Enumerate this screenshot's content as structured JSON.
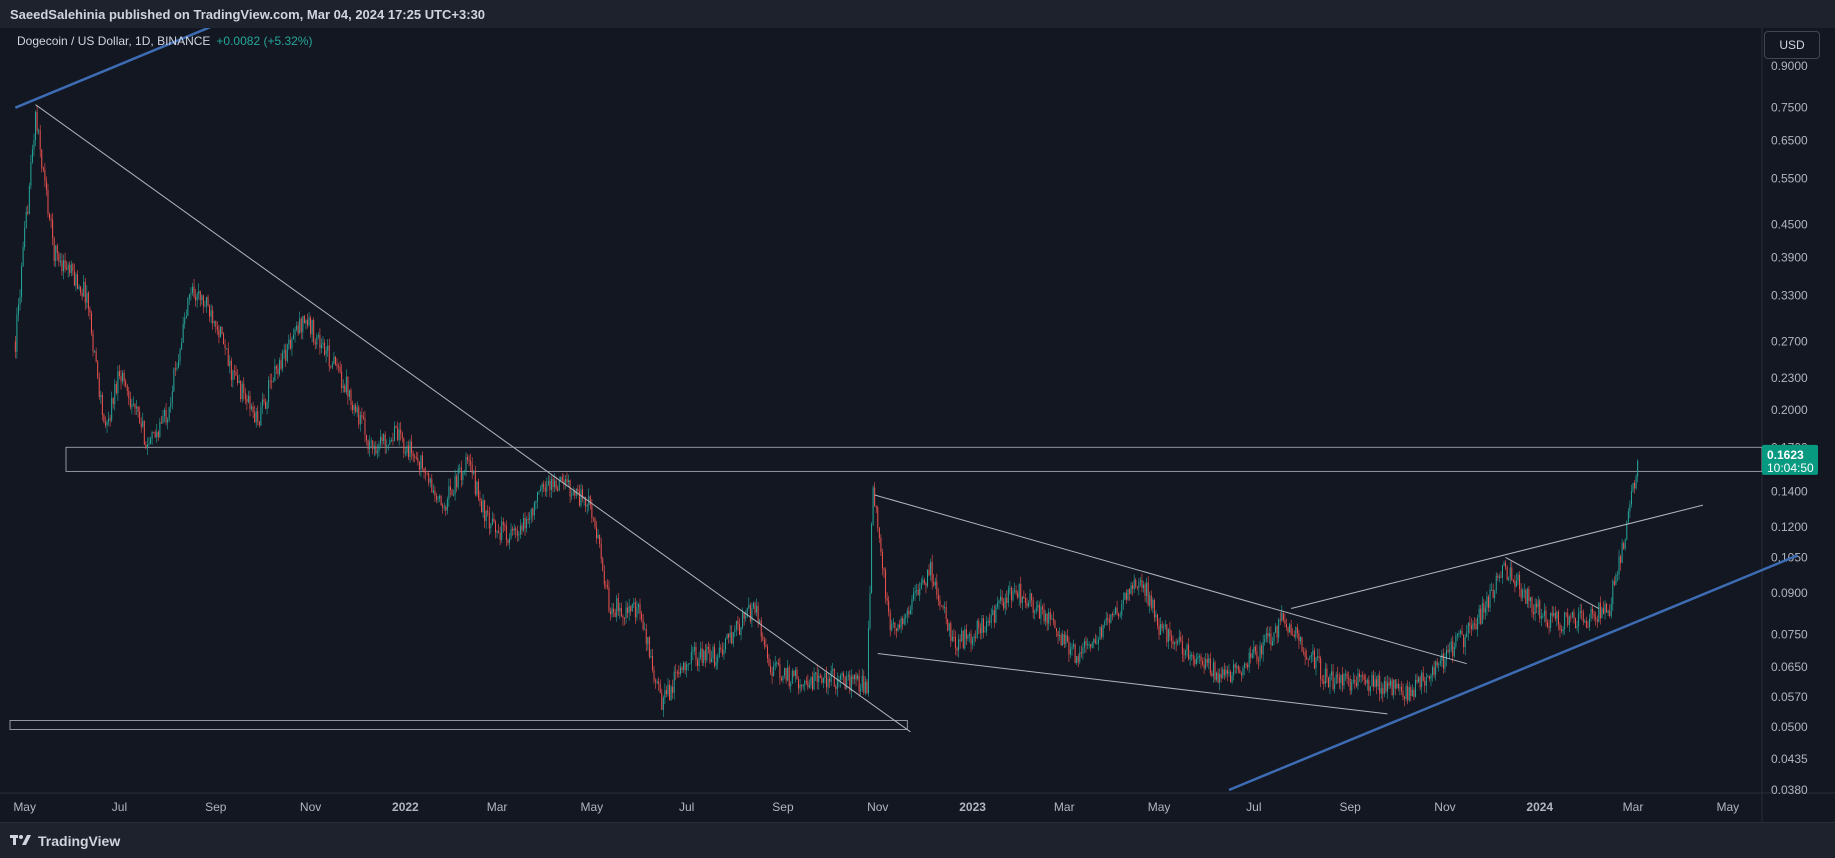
{
  "header": {
    "published_line": "SaeedSalehinia published on TradingView.com, Mar 04, 2024 17:25 UTC+3:30"
  },
  "legend": {
    "symbol": "Dogecoin / US Dollar, 1D, BINANCE",
    "change": "+0.0082 (+5.32%)"
  },
  "currency_button": "USD",
  "footer": {
    "brand": "TradingView"
  },
  "price_tag": {
    "price": "0.1623",
    "countdown": "10:04:50",
    "color": "#089981"
  },
  "colors": {
    "background": "#131722",
    "up": "#26a69a",
    "down": "#ef5350",
    "trendline": "#b2b5be",
    "channel": "#2962ff"
  },
  "chart_data": {
    "type": "candlestick",
    "scale": "log",
    "price_axis_labels": [
      "0.9000",
      "0.7500",
      "0.6500",
      "0.5500",
      "0.4500",
      "0.3900",
      "0.3300",
      "0.2700",
      "0.2300",
      "0.2000",
      "0.1700",
      "0.1400",
      "0.1200",
      "0.1050",
      "0.0900",
      "0.0750",
      "0.0650",
      "0.0570",
      "0.0500",
      "0.0435",
      "0.0380"
    ],
    "time_axis_labels": [
      {
        "label": "May",
        "date": "2021-05-01"
      },
      {
        "label": "Jul",
        "date": "2021-07-01"
      },
      {
        "label": "Sep",
        "date": "2021-09-01"
      },
      {
        "label": "Nov",
        "date": "2021-11-01"
      },
      {
        "label": "2022",
        "date": "2022-01-01",
        "bold": true
      },
      {
        "label": "Mar",
        "date": "2022-03-01"
      },
      {
        "label": "May",
        "date": "2022-05-01"
      },
      {
        "label": "Jul",
        "date": "2022-07-01"
      },
      {
        "label": "Sep",
        "date": "2022-09-01"
      },
      {
        "label": "Nov",
        "date": "2022-11-01"
      },
      {
        "label": "2023",
        "date": "2023-01-01",
        "bold": true
      },
      {
        "label": "Mar",
        "date": "2023-03-01"
      },
      {
        "label": "May",
        "date": "2023-05-01"
      },
      {
        "label": "Jul",
        "date": "2023-07-01"
      },
      {
        "label": "Sep",
        "date": "2023-09-01"
      },
      {
        "label": "Nov",
        "date": "2023-11-01"
      },
      {
        "label": "2024",
        "date": "2024-01-01",
        "bold": true
      },
      {
        "label": "Mar",
        "date": "2024-03-01"
      },
      {
        "label": "May",
        "date": "2024-05-01"
      }
    ],
    "price_path": [
      [
        "2021-04-25",
        0.27
      ],
      [
        "2021-05-08",
        0.72
      ],
      [
        "2021-05-20",
        0.4
      ],
      [
        "2021-06-01",
        0.36
      ],
      [
        "2021-06-10",
        0.33
      ],
      [
        "2021-06-22",
        0.18
      ],
      [
        "2021-07-01",
        0.24
      ],
      [
        "2021-07-20",
        0.17
      ],
      [
        "2021-08-01",
        0.2
      ],
      [
        "2021-08-16",
        0.34
      ],
      [
        "2021-09-01",
        0.3
      ],
      [
        "2021-09-10",
        0.24
      ],
      [
        "2021-09-28",
        0.19
      ],
      [
        "2021-10-10",
        0.24
      ],
      [
        "2021-10-28",
        0.3
      ],
      [
        "2021-11-10",
        0.26
      ],
      [
        "2021-11-25",
        0.22
      ],
      [
        "2021-12-10",
        0.17
      ],
      [
        "2021-12-25",
        0.18
      ],
      [
        "2022-01-10",
        0.16
      ],
      [
        "2022-01-24",
        0.13
      ],
      [
        "2022-02-10",
        0.16
      ],
      [
        "2022-02-24",
        0.12
      ],
      [
        "2022-03-15",
        0.115
      ],
      [
        "2022-04-01",
        0.145
      ],
      [
        "2022-04-15",
        0.145
      ],
      [
        "2022-05-01",
        0.13
      ],
      [
        "2022-05-12",
        0.085
      ],
      [
        "2022-06-01",
        0.082
      ],
      [
        "2022-06-15",
        0.055
      ],
      [
        "2022-07-01",
        0.068
      ],
      [
        "2022-07-20",
        0.068
      ],
      [
        "2022-08-14",
        0.085
      ],
      [
        "2022-08-25",
        0.064
      ],
      [
        "2022-09-15",
        0.061
      ],
      [
        "2022-10-01",
        0.062
      ],
      [
        "2022-10-25",
        0.06
      ],
      [
        "2022-10-29",
        0.145
      ],
      [
        "2022-11-09",
        0.075
      ],
      [
        "2022-11-22",
        0.085
      ],
      [
        "2022-12-05",
        0.1
      ],
      [
        "2022-12-20",
        0.072
      ],
      [
        "2023-01-10",
        0.078
      ],
      [
        "2023-01-28",
        0.092
      ],
      [
        "2023-02-10",
        0.085
      ],
      [
        "2023-03-10",
        0.068
      ],
      [
        "2023-03-25",
        0.075
      ],
      [
        "2023-04-19",
        0.097
      ],
      [
        "2023-05-01",
        0.078
      ],
      [
        "2023-06-10",
        0.062
      ],
      [
        "2023-07-01",
        0.068
      ],
      [
        "2023-07-20",
        0.08
      ],
      [
        "2023-08-17",
        0.062
      ],
      [
        "2023-09-10",
        0.061
      ],
      [
        "2023-10-10",
        0.058
      ],
      [
        "2023-11-01",
        0.068
      ],
      [
        "2023-11-20",
        0.078
      ],
      [
        "2023-12-10",
        0.1
      ],
      [
        "2024-01-05",
        0.08
      ],
      [
        "2024-01-25",
        0.079
      ],
      [
        "2024-02-15",
        0.085
      ],
      [
        "2024-02-28",
        0.13
      ],
      [
        "2024-03-04",
        0.1623
      ]
    ],
    "levels": {
      "resistance_zone": [
        0.153,
        0.17
      ],
      "support_zone": [
        0.0495,
        0.0515
      ]
    },
    "drawings": [
      {
        "name": "major-downtrend",
        "from": [
          "2021-05-08",
          0.76
        ],
        "to": [
          "2022-11-22",
          0.049
        ]
      },
      {
        "name": "wedge-top",
        "from": [
          "2022-10-30",
          0.138
        ],
        "to": [
          "2023-11-15",
          0.066
        ]
      },
      {
        "name": "wedge-bottom",
        "from": [
          "2022-11-01",
          0.069
        ],
        "to": [
          "2023-09-25",
          0.053
        ]
      },
      {
        "name": "breakout-line",
        "from": [
          "2023-07-25",
          0.084
        ],
        "to": [
          "2024-04-15",
          0.132
        ]
      },
      {
        "name": "pullback-line",
        "from": [
          "2023-12-10",
          0.105
        ],
        "to": [
          "2024-02-08",
          0.084
        ]
      }
    ],
    "channels": [
      {
        "name": "ascending-support",
        "from": [
          "2023-06-15",
          0.038
        ],
        "to": [
          "2024-06-15",
          0.106
        ]
      },
      {
        "name": "early-top",
        "from": [
          "2021-04-25",
          0.75
        ],
        "to": [
          "2021-09-05",
          1.09
        ]
      }
    ]
  }
}
